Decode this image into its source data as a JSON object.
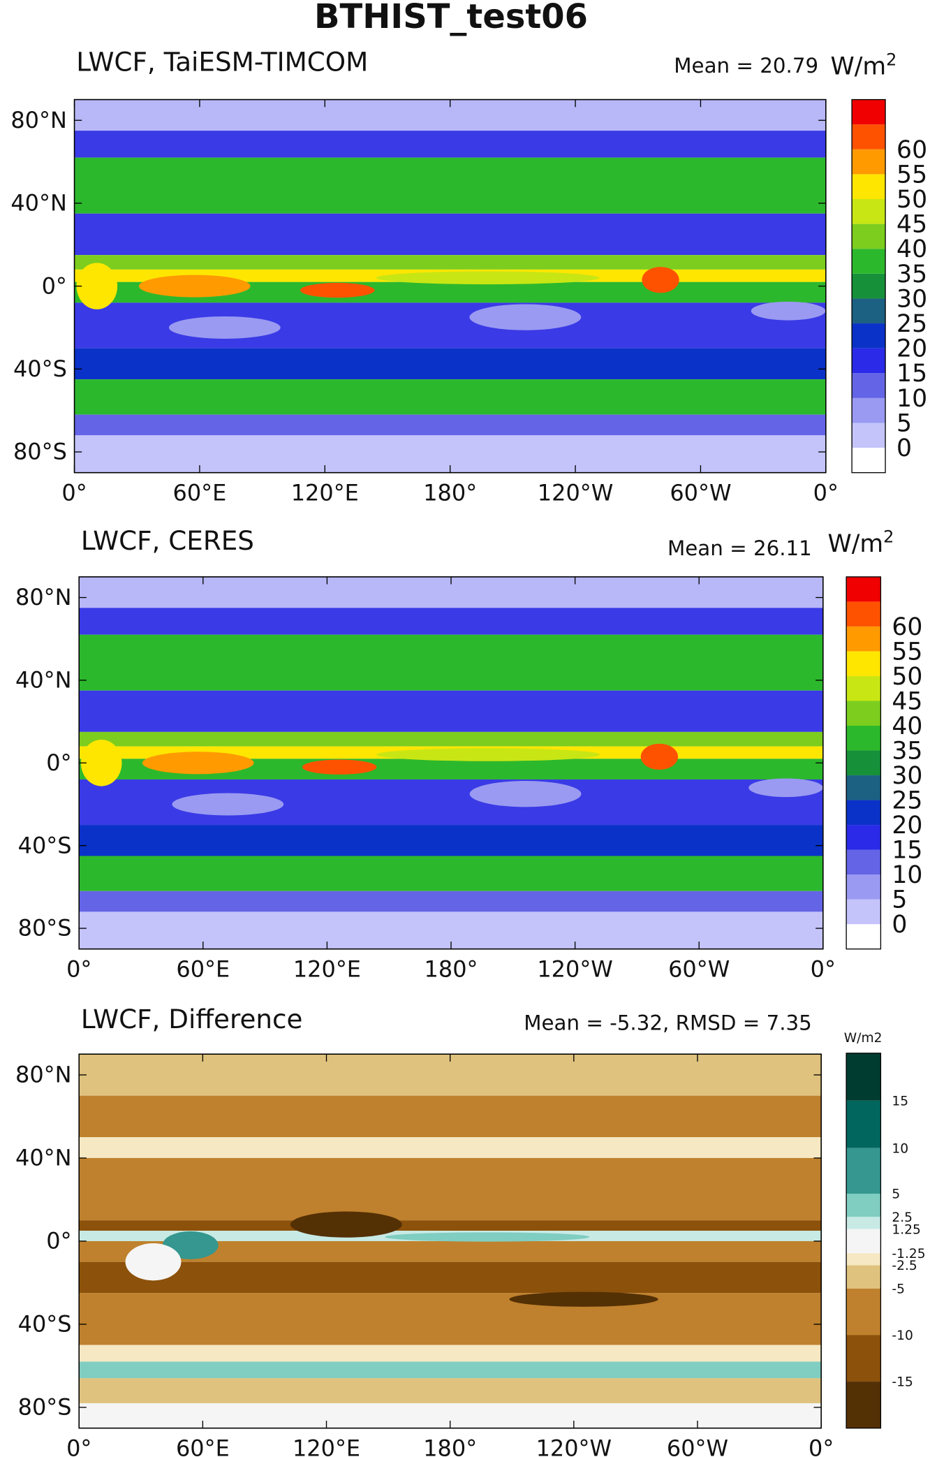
{
  "title": "BTHIST_test06",
  "xticks": [
    "0°",
    "60°E",
    "120°E",
    "180°",
    "120°W",
    "60°W",
    "0°"
  ],
  "yticks": [
    "80°N",
    "40°N",
    "0°",
    "40°S",
    "80°S"
  ],
  "panels": [
    {
      "title": "LWCF, TaiESM-TIMCOM",
      "stats": "Mean = 20.79",
      "units": "W/m",
      "units_exp": "2",
      "colorbar": {
        "labels": [
          "0",
          "5",
          "10",
          "15",
          "20",
          "25",
          "30",
          "35",
          "40",
          "45",
          "50",
          "55",
          "60"
        ],
        "colors": [
          "#ffffff",
          "#c4c4fb",
          "#9a9af2",
          "#6464e6",
          "#2a2ae8",
          "#0a32c8",
          "#1c6082",
          "#17903a",
          "#2cb82c",
          "#7ccd1e",
          "#c8e614",
          "#ffe600",
          "#ff9a00",
          "#ff5200",
          "#f00000"
        ]
      }
    },
    {
      "title": "LWCF, CERES",
      "stats": "Mean = 26.11",
      "units": "W/m",
      "units_exp": "2",
      "colorbar": {
        "labels": [
          "0",
          "5",
          "10",
          "15",
          "20",
          "25",
          "30",
          "35",
          "40",
          "45",
          "50",
          "55",
          "60"
        ],
        "colors": [
          "#ffffff",
          "#c4c4fb",
          "#9a9af2",
          "#6464e6",
          "#2a2ae8",
          "#0a32c8",
          "#1c6082",
          "#17903a",
          "#2cb82c",
          "#7ccd1e",
          "#c8e614",
          "#ffe600",
          "#ff9a00",
          "#ff5200",
          "#f00000"
        ]
      }
    },
    {
      "title": "LWCF, Difference",
      "stats": "Mean = -5.32, RMSD = 7.35",
      "units": "W/m2",
      "colorbar": {
        "labels": [
          "15",
          "10",
          "5",
          "2.5",
          "1.25",
          "-1.25",
          "-2.5",
          "-5",
          "-10",
          "-15"
        ],
        "colors": [
          "#003c30",
          "#01665e",
          "#35978f",
          "#80cdc1",
          "#c7eae5",
          "#f5f5f5",
          "#f6e8c3",
          "#dfc27d",
          "#bf812d",
          "#8c510a",
          "#543005"
        ]
      }
    }
  ]
}
